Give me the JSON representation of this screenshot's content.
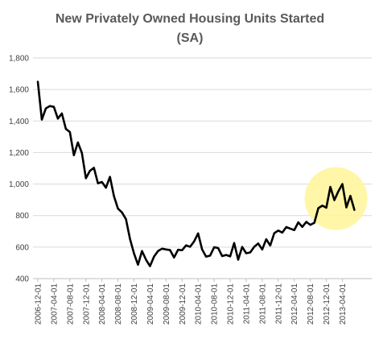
{
  "chart_data": {
    "type": "line",
    "title": "New Privately Owned Housing Units Started",
    "subtitle": "(SA)",
    "xlabel": "",
    "ylabel": "",
    "ylim": [
      400,
      1800
    ],
    "yticks": [
      "400",
      "600",
      "800",
      "1,000",
      "1,200",
      "1,400",
      "1,600",
      "1,800"
    ],
    "grid": true,
    "x_tick_labels": [
      "2006-12-01",
      "2007-04-01",
      "2007-08-01",
      "2007-12-01",
      "2008-04-01",
      "2008-08-01",
      "2008-12-01",
      "2009-04-01",
      "2009-08-01",
      "2009-12-01",
      "2010-04-01",
      "2010-08-01",
      "2010-12-01",
      "2011-04-01",
      "2011-08-01",
      "2011-12-01",
      "2012-04-01",
      "2012-08-01",
      "2012-12-01",
      "2013-04-01"
    ],
    "x_start": "2006-12-01",
    "series": [
      {
        "name": "",
        "color": "#000000",
        "values": [
          1649,
          1409,
          1480,
          1495,
          1490,
          1415,
          1448,
          1350,
          1330,
          1183,
          1264,
          1197,
          1037,
          1084,
          1103,
          1005,
          1013,
          977,
          1046,
          923,
          844,
          820,
          777,
          652,
          560,
          488,
          575,
          520,
          479,
          540,
          575,
          590,
          585,
          581,
          534,
          583,
          580,
          611,
          602,
          636,
          687,
          585,
          539,
          546,
          599,
          594,
          543,
          550,
          541,
          626,
          520,
          601,
          561,
          566,
          602,
          623,
          585,
          650,
          610,
          688,
          705,
          692,
          727,
          717,
          708,
          757,
          728,
          760,
          741,
          754,
          847,
          863,
          850,
          982,
          898,
          954,
          1000,
          852,
          925,
          836
        ]
      }
    ],
    "annotation": {
      "type": "highlight-circle",
      "color": "#fff59d"
    }
  }
}
